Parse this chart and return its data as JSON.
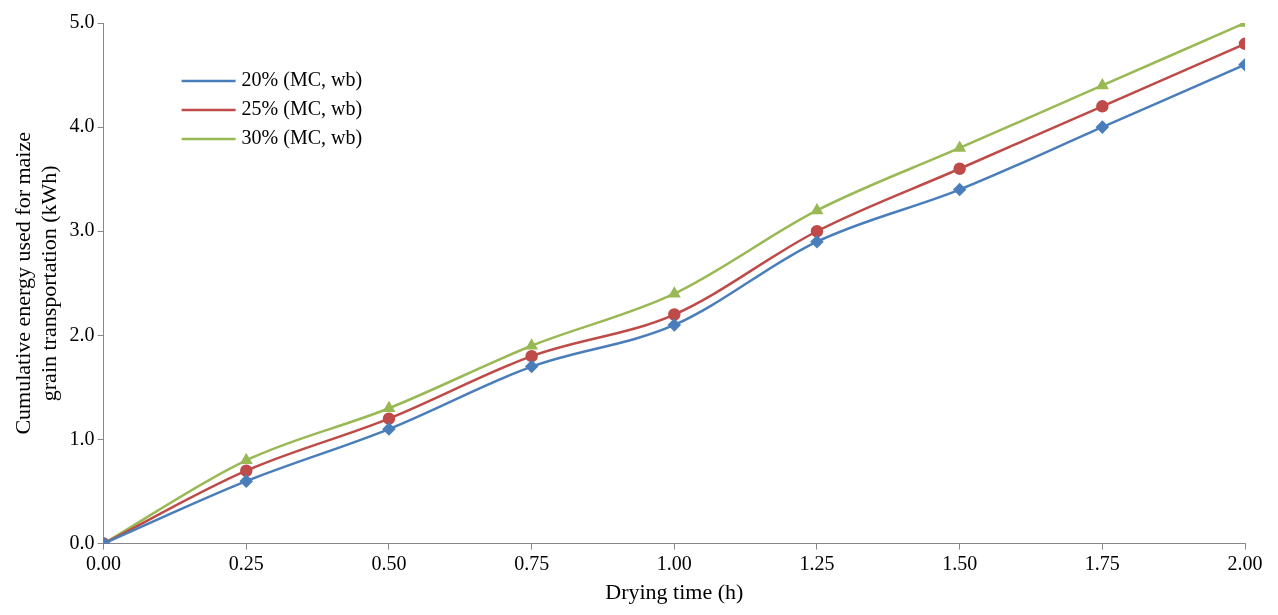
{
  "chart_data": {
    "type": "line",
    "xlabel": "Drying time (h)",
    "ylabel": "Cumulative energy used for maize grain transportation (kWh)",
    "x": [
      0,
      0.25,
      0.5,
      0.75,
      1,
      1.25,
      1.5,
      1.75,
      2
    ],
    "series": [
      {
        "name": "20% (MC, wb)",
        "color": "#4a7ebb",
        "marker": "diamond",
        "values": [
          0,
          0.6,
          1.1,
          1.7,
          2.1,
          2.9,
          3.4,
          4.0,
          4.6
        ]
      },
      {
        "name": "25% (MC, wb)",
        "color": "#be4b48",
        "marker": "circle",
        "values": [
          0,
          0.7,
          1.2,
          1.8,
          2.2,
          3.0,
          3.6,
          4.2,
          4.8
        ]
      },
      {
        "name": "30% (MC, wb)",
        "color": "#98b954",
        "marker": "triangle",
        "values": [
          0,
          0.8,
          1.3,
          1.9,
          2.4,
          3.2,
          3.8,
          4.4,
          5.0
        ]
      }
    ],
    "xlim": [
      0,
      2
    ],
    "xticks": [
      {
        "value": 0,
        "label": "0.00"
      },
      {
        "value": 0.25,
        "label": "0.25"
      },
      {
        "value": 0.5,
        "label": "0.50"
      },
      {
        "value": 0.75,
        "label": "0.75"
      },
      {
        "value": 1,
        "label": "1.00"
      },
      {
        "value": 1.25,
        "label": "1.25"
      },
      {
        "value": 1.5,
        "label": "1.50"
      },
      {
        "value": 1.75,
        "label": "1.75"
      },
      {
        "value": 2,
        "label": "2.00"
      }
    ],
    "ylim": [
      0,
      5
    ],
    "yticks": [
      {
        "value": 0,
        "label": "0.0"
      },
      {
        "value": 1,
        "label": "1.0"
      },
      {
        "value": 2,
        "label": "2.0"
      },
      {
        "value": 3,
        "label": "3.0"
      },
      {
        "value": 4,
        "label": "4.0"
      },
      {
        "value": 5,
        "label": "5.0"
      }
    ],
    "grid": false,
    "legend": "top left"
  }
}
